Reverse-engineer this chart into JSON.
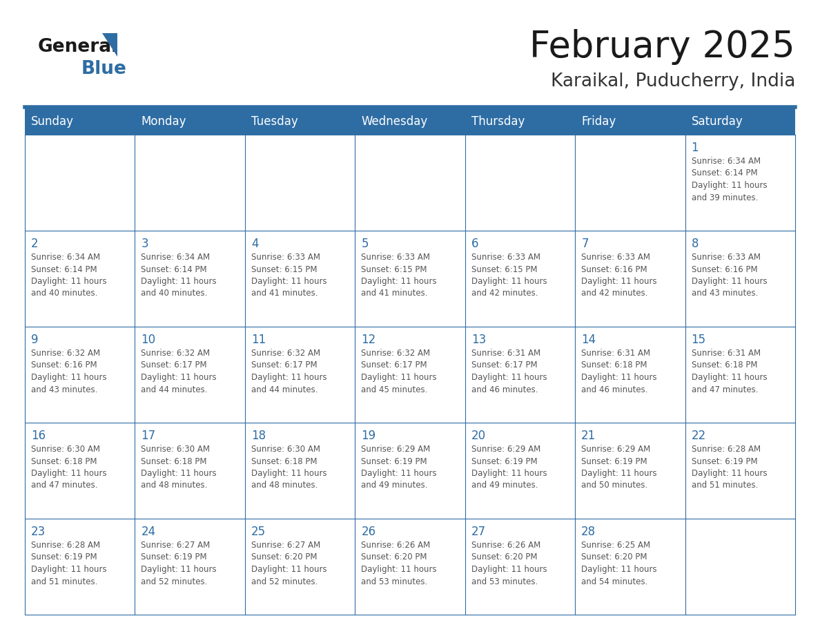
{
  "title": "February 2025",
  "subtitle": "Karaikal, Puducherry, India",
  "header_bg": "#2E6DA4",
  "header_text": "#FFFFFF",
  "day_names": [
    "Sunday",
    "Monday",
    "Tuesday",
    "Wednesday",
    "Thursday",
    "Friday",
    "Saturday"
  ],
  "cell_bg": "#FFFFFF",
  "cell_border": "#2E6DA4",
  "day_num_color": "#2E6DA4",
  "info_color": "#555555",
  "title_color": "#1a1a1a",
  "subtitle_color": "#333333",
  "logo_general_color": "#1a1a1a",
  "logo_blue_color": "#2E6DA4",
  "logo_triangle_color": "#2E6DA4",
  "separator_color": "#2E6DA4",
  "calendar": [
    [
      null,
      null,
      null,
      null,
      null,
      null,
      {
        "day": 1,
        "sunrise": "6:34 AM",
        "sunset": "6:14 PM",
        "daylight": "11 hours and 39 minutes."
      }
    ],
    [
      {
        "day": 2,
        "sunrise": "6:34 AM",
        "sunset": "6:14 PM",
        "daylight": "11 hours and 40 minutes."
      },
      {
        "day": 3,
        "sunrise": "6:34 AM",
        "sunset": "6:14 PM",
        "daylight": "11 hours and 40 minutes."
      },
      {
        "day": 4,
        "sunrise": "6:33 AM",
        "sunset": "6:15 PM",
        "daylight": "11 hours and 41 minutes."
      },
      {
        "day": 5,
        "sunrise": "6:33 AM",
        "sunset": "6:15 PM",
        "daylight": "11 hours and 41 minutes."
      },
      {
        "day": 6,
        "sunrise": "6:33 AM",
        "sunset": "6:15 PM",
        "daylight": "11 hours and 42 minutes."
      },
      {
        "day": 7,
        "sunrise": "6:33 AM",
        "sunset": "6:16 PM",
        "daylight": "11 hours and 42 minutes."
      },
      {
        "day": 8,
        "sunrise": "6:33 AM",
        "sunset": "6:16 PM",
        "daylight": "11 hours and 43 minutes."
      }
    ],
    [
      {
        "day": 9,
        "sunrise": "6:32 AM",
        "sunset": "6:16 PM",
        "daylight": "11 hours and 43 minutes."
      },
      {
        "day": 10,
        "sunrise": "6:32 AM",
        "sunset": "6:17 PM",
        "daylight": "11 hours and 44 minutes."
      },
      {
        "day": 11,
        "sunrise": "6:32 AM",
        "sunset": "6:17 PM",
        "daylight": "11 hours and 44 minutes."
      },
      {
        "day": 12,
        "sunrise": "6:32 AM",
        "sunset": "6:17 PM",
        "daylight": "11 hours and 45 minutes."
      },
      {
        "day": 13,
        "sunrise": "6:31 AM",
        "sunset": "6:17 PM",
        "daylight": "11 hours and 46 minutes."
      },
      {
        "day": 14,
        "sunrise": "6:31 AM",
        "sunset": "6:18 PM",
        "daylight": "11 hours and 46 minutes."
      },
      {
        "day": 15,
        "sunrise": "6:31 AM",
        "sunset": "6:18 PM",
        "daylight": "11 hours and 47 minutes."
      }
    ],
    [
      {
        "day": 16,
        "sunrise": "6:30 AM",
        "sunset": "6:18 PM",
        "daylight": "11 hours and 47 minutes."
      },
      {
        "day": 17,
        "sunrise": "6:30 AM",
        "sunset": "6:18 PM",
        "daylight": "11 hours and 48 minutes."
      },
      {
        "day": 18,
        "sunrise": "6:30 AM",
        "sunset": "6:18 PM",
        "daylight": "11 hours and 48 minutes."
      },
      {
        "day": 19,
        "sunrise": "6:29 AM",
        "sunset": "6:19 PM",
        "daylight": "11 hours and 49 minutes."
      },
      {
        "day": 20,
        "sunrise": "6:29 AM",
        "sunset": "6:19 PM",
        "daylight": "11 hours and 49 minutes."
      },
      {
        "day": 21,
        "sunrise": "6:29 AM",
        "sunset": "6:19 PM",
        "daylight": "11 hours and 50 minutes."
      },
      {
        "day": 22,
        "sunrise": "6:28 AM",
        "sunset": "6:19 PM",
        "daylight": "11 hours and 51 minutes."
      }
    ],
    [
      {
        "day": 23,
        "sunrise": "6:28 AM",
        "sunset": "6:19 PM",
        "daylight": "11 hours and 51 minutes."
      },
      {
        "day": 24,
        "sunrise": "6:27 AM",
        "sunset": "6:19 PM",
        "daylight": "11 hours and 52 minutes."
      },
      {
        "day": 25,
        "sunrise": "6:27 AM",
        "sunset": "6:20 PM",
        "daylight": "11 hours and 52 minutes."
      },
      {
        "day": 26,
        "sunrise": "6:26 AM",
        "sunset": "6:20 PM",
        "daylight": "11 hours and 53 minutes."
      },
      {
        "day": 27,
        "sunrise": "6:26 AM",
        "sunset": "6:20 PM",
        "daylight": "11 hours and 53 minutes."
      },
      {
        "day": 28,
        "sunrise": "6:25 AM",
        "sunset": "6:20 PM",
        "daylight": "11 hours and 54 minutes."
      },
      null
    ]
  ]
}
